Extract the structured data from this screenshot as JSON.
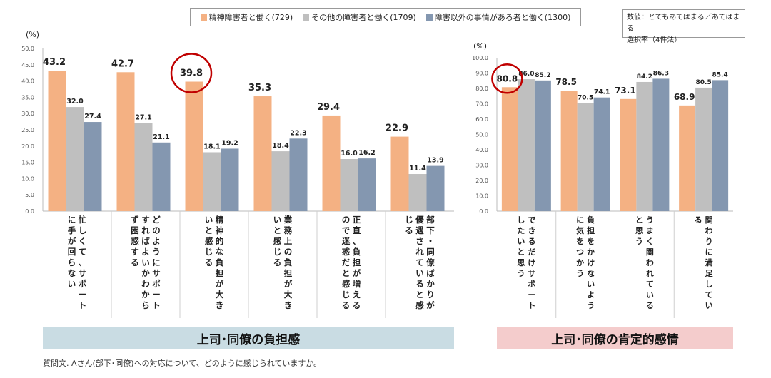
{
  "legend": [
    {
      "label": "精神障害者と働く(729)",
      "color": "#F4B183"
    },
    {
      "label": "その他の障害者と働く(1709)",
      "color": "#BFBFBF"
    },
    {
      "label": "障害以外の事情がある者と働く(1300)",
      "color": "#8497B0"
    }
  ],
  "note": {
    "line1": "数値：とてもあてはまる／あてはまる",
    "line2": "選択率（4件法）"
  },
  "left_unit": "(%)",
  "right_unit": "(%)",
  "banner_left": "上司･同僚の負担感",
  "banner_right": "上司･同僚の肯定的感情",
  "footer": "質問文. Aさん(部下･同僚)への対応について、どのように感じられていますか。",
  "chart_data": [
    {
      "type": "bar",
      "ylabel": "(%)",
      "ylim": [
        0,
        50
      ],
      "yticks": [
        "0.0",
        "5.0",
        "10.0",
        "15.0",
        "20.0",
        "25.0",
        "30.0",
        "35.0",
        "40.0",
        "45.0",
        "50.0"
      ],
      "grid": false,
      "categories": [
        "忙しくて、サポートに手が回らない",
        "どのようにサポートすればよいかわからず困惑する",
        "精神的な負担が大きいと感じる",
        "業務上の負担が大きいと感じる",
        "正直、負担が増えるので迷惑だと感じる",
        "部下・同僚ばかりが優遇されていると感じる"
      ],
      "series": [
        {
          "name": "精神障害者と働く(729)",
          "values": [
            43.2,
            42.7,
            39.8,
            35.3,
            29.4,
            22.9
          ]
        },
        {
          "name": "その他の障害者と働く(1709)",
          "values": [
            32.0,
            27.1,
            18.1,
            18.4,
            16.0,
            11.4
          ]
        },
        {
          "name": "障害以外の事情がある者と働く(1300)",
          "values": [
            27.4,
            21.1,
            19.2,
            22.3,
            16.2,
            13.9
          ]
        }
      ],
      "highlight": {
        "series": 0,
        "index": 2
      }
    },
    {
      "type": "bar",
      "ylabel": "(%)",
      "ylim": [
        0,
        100
      ],
      "yticks": [
        "0.0",
        "10.0",
        "20.0",
        "30.0",
        "40.0",
        "50.0",
        "60.0",
        "70.0",
        "80.0",
        "90.0",
        "100.0"
      ],
      "grid": false,
      "categories": [
        "できるだけサポートしたいと思う",
        "負担をかけないように気をつかう",
        "うまく関われていると思う",
        "関わりに満足している"
      ],
      "series": [
        {
          "name": "精神障害者と働く(729)",
          "values": [
            80.8,
            78.5,
            73.1,
            68.9
          ]
        },
        {
          "name": "その他の障害者と働く(1709)",
          "values": [
            86.0,
            70.5,
            84.2,
            80.5
          ]
        },
        {
          "name": "障害以外の事情がある者と働く(1300)",
          "values": [
            85.2,
            74.1,
            86.3,
            85.4
          ]
        }
      ],
      "highlight": {
        "series": 0,
        "index": 0
      }
    }
  ]
}
